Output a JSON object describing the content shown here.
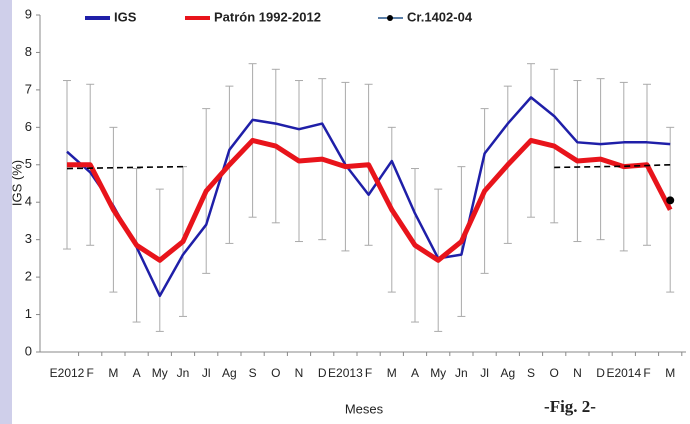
{
  "chart_data": {
    "type": "line",
    "y_label": "IGS (%)",
    "x_label": "Meses",
    "annotation": "-Fig. 2-",
    "categories": [
      "E2012",
      "F",
      "M",
      "A",
      "My",
      "Jn",
      "Jl",
      "Ag",
      "S",
      "O",
      "N",
      "D",
      "E2013",
      "F",
      "M",
      "A",
      "My",
      "Jn",
      "Jl",
      "Ag",
      "S",
      "O",
      "N",
      "D",
      "E2014",
      "F",
      "M"
    ],
    "ylim": [
      0,
      9
    ],
    "yticks": [
      0,
      1,
      2,
      3,
      4,
      5,
      6,
      7,
      8,
      9
    ],
    "series": [
      {
        "name": "IGS",
        "color": "#1f1fa8",
        "values": [
          5.35,
          4.8,
          3.9,
          2.8,
          1.5,
          2.6,
          3.4,
          5.4,
          6.2,
          6.1,
          5.95,
          6.1,
          5.0,
          4.2,
          5.1,
          3.7,
          2.5,
          2.6,
          5.3,
          6.1,
          6.8,
          6.3,
          5.6,
          5.55,
          5.6,
          5.6,
          5.55
        ]
      },
      {
        "name": "Patrón 1992-2012",
        "color": "#e8141b",
        "values": [
          5.0,
          5.0,
          3.8,
          2.85,
          2.45,
          2.95,
          4.3,
          5.0,
          5.65,
          5.5,
          5.1,
          5.15,
          4.95,
          5.0,
          3.8,
          2.85,
          2.45,
          2.95,
          4.3,
          5.0,
          5.65,
          5.5,
          5.1,
          5.15,
          4.95,
          5.0,
          3.8
        ],
        "errors": [
          2.25,
          2.15,
          2.2,
          2.05,
          1.9,
          2.0,
          2.2,
          2.1,
          2.05,
          2.05,
          2.15,
          2.15,
          2.25,
          2.15,
          2.2,
          2.05,
          1.9,
          2.0,
          2.2,
          2.1,
          2.05,
          2.05,
          2.15,
          2.15,
          2.25,
          2.15,
          2.2
        ]
      },
      {
        "name": "Cr.1402-04",
        "color": "#5b7fa8",
        "marker": true,
        "values": [
          null,
          null,
          null,
          null,
          null,
          null,
          null,
          null,
          null,
          null,
          null,
          null,
          null,
          null,
          null,
          null,
          null,
          null,
          null,
          null,
          null,
          null,
          null,
          null,
          null,
          null,
          4.05
        ]
      },
      {
        "color": "#000000",
        "dashed": true,
        "values": [
          4.9,
          4.91,
          4.92,
          4.93,
          4.94,
          4.95,
          null,
          null,
          null,
          null,
          null,
          null,
          null,
          null,
          null,
          null,
          null,
          null,
          null,
          null,
          null,
          null,
          null,
          null,
          null,
          null,
          null
        ]
      },
      {
        "color": "#000000",
        "dashed": true,
        "values": [
          null,
          null,
          null,
          null,
          null,
          null,
          null,
          null,
          null,
          null,
          null,
          null,
          null,
          null,
          null,
          null,
          null,
          null,
          null,
          null,
          null,
          4.93,
          4.94,
          4.95,
          4.96,
          4.98,
          5.0
        ]
      }
    ]
  }
}
